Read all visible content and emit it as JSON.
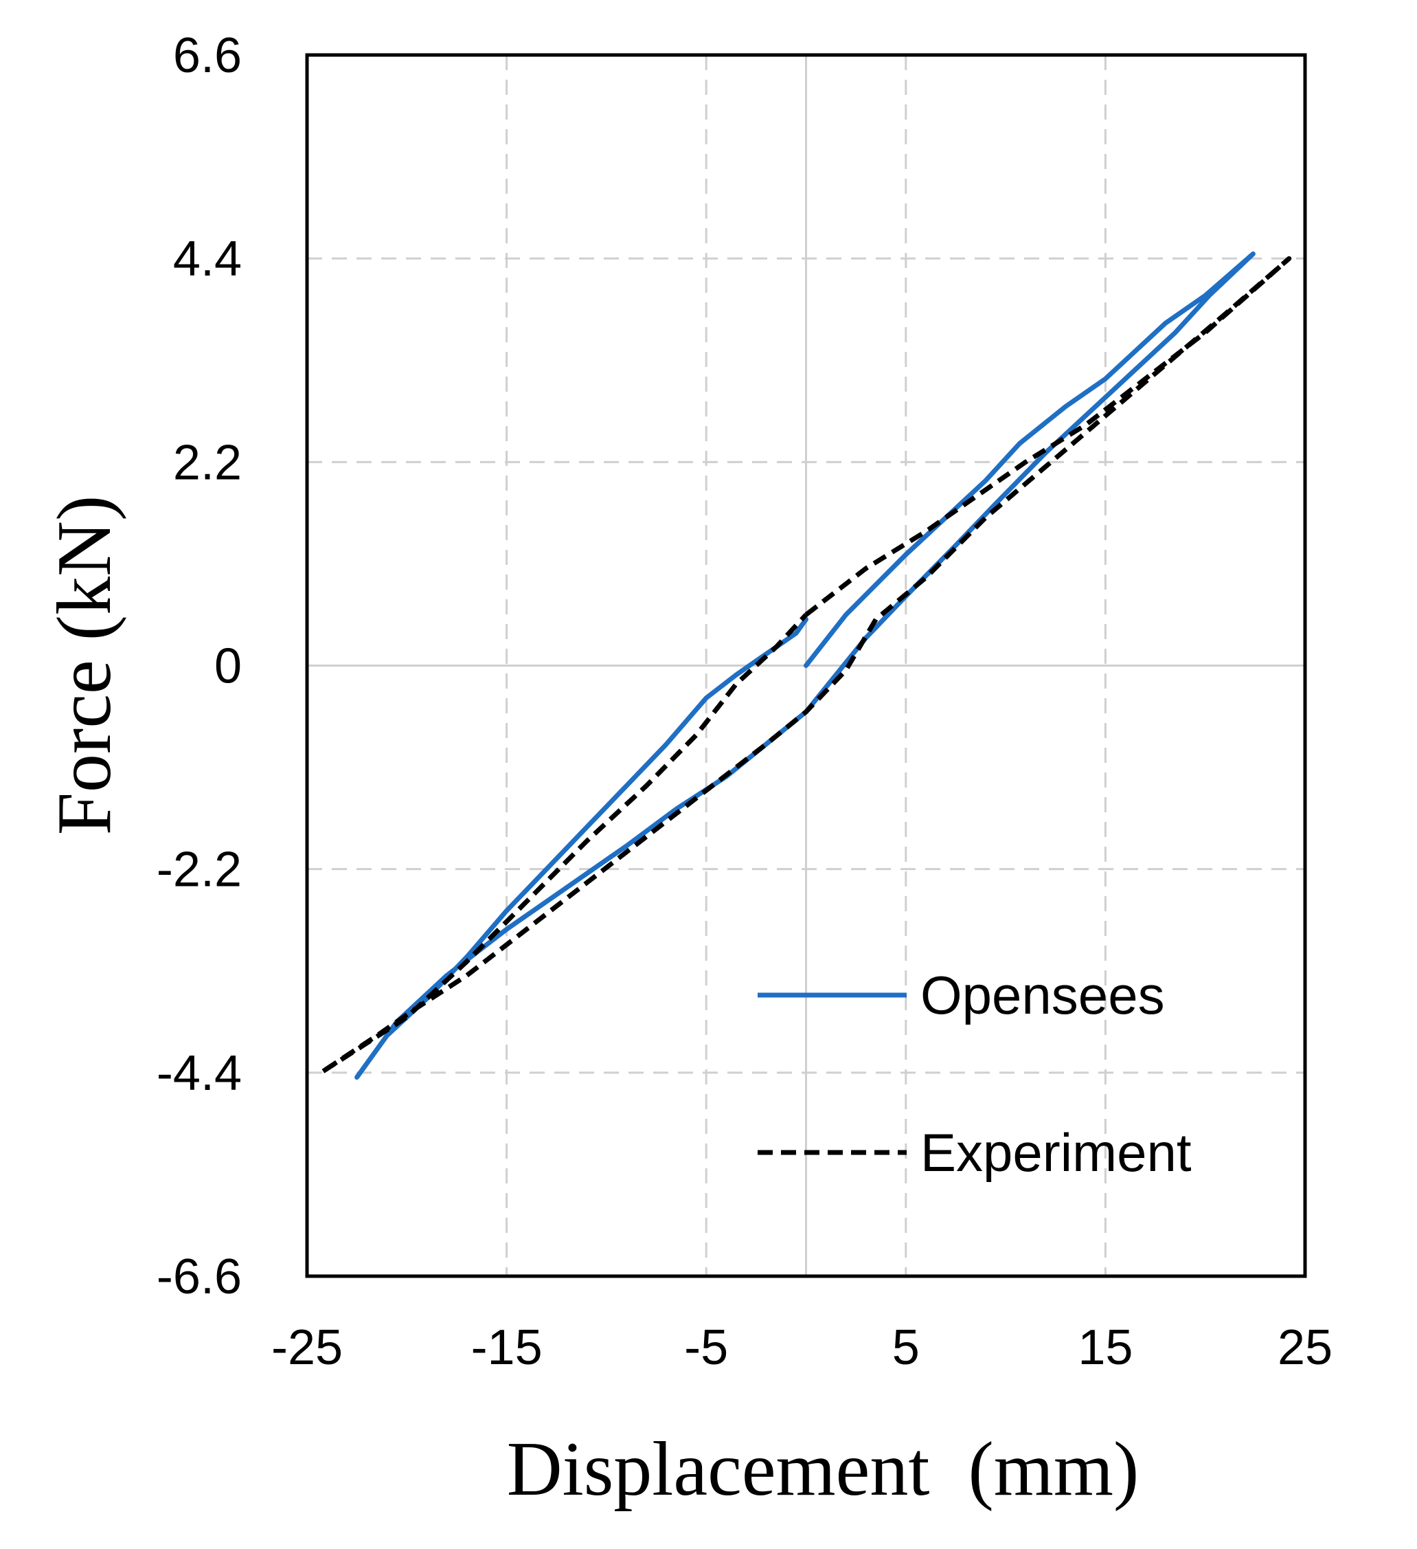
{
  "chart_data": {
    "type": "line",
    "title": "",
    "xlabel": "Displacement  (mm)",
    "ylabel": "Force (kN)",
    "xlim": [
      -25,
      25
    ],
    "ylim": [
      -6.6,
      6.6
    ],
    "xticks": [
      -25,
      -15,
      -5,
      5,
      15,
      25
    ],
    "xtick_labels": [
      "-25",
      "-15",
      "-5",
      "5",
      "15",
      "25"
    ],
    "yticks": [
      6.6,
      4.4,
      2.2,
      0,
      -2.2,
      -4.4,
      -6.6
    ],
    "ytick_labels": [
      "6.6",
      "4.4",
      "2.2",
      "0",
      "-2.2",
      "-4.4",
      "-6.6"
    ],
    "grid": true,
    "legend_position": "bottom-right",
    "series": [
      {
        "name": "Opensees",
        "color": "#1f6fc4",
        "style": "solid",
        "x": [
          0,
          2,
          5,
          6.5,
          9,
          10.7,
          13,
          15,
          18,
          20,
          22.4,
          20.2,
          18.5,
          16.5,
          14.5,
          12,
          9.5,
          7.5,
          5,
          3,
          1.5,
          0,
          -2,
          -4,
          -6.5,
          -9,
          -12,
          -15,
          -18,
          -20.5,
          -22.5,
          -21,
          -19,
          -17,
          -15,
          -13,
          -11,
          -9,
          -7,
          -5,
          -3.5,
          -2.5,
          -1.5,
          -0.5,
          0
        ],
        "y": [
          0,
          0.55,
          1.2,
          1.5,
          2.0,
          2.4,
          2.8,
          3.1,
          3.7,
          4.0,
          4.45,
          4.0,
          3.6,
          3.2,
          2.8,
          2.3,
          1.75,
          1.3,
          0.75,
          0.3,
          -0.1,
          -0.5,
          -0.85,
          -1.2,
          -1.55,
          -1.95,
          -2.4,
          -2.85,
          -3.35,
          -3.85,
          -4.45,
          -4.0,
          -3.6,
          -3.15,
          -2.65,
          -2.2,
          -1.75,
          -1.3,
          -0.85,
          -0.35,
          -0.1,
          0.05,
          0.2,
          0.35,
          0.5
        ]
      },
      {
        "name": "Experiment",
        "color": "#000000",
        "style": "dashed",
        "x": [
          0,
          3,
          6,
          9,
          11,
          14,
          17,
          20,
          24.2,
          21,
          18,
          15,
          12,
          9,
          6,
          3.5,
          2,
          0,
          -2,
          -5,
          -8,
          -11,
          -14,
          -17,
          -19.5,
          -21.5,
          -24.3,
          -22.5,
          -20,
          -17,
          -14,
          -11,
          -8,
          -5.5,
          -3.5,
          -1.5,
          0
        ],
        "y": [
          0.55,
          1.05,
          1.45,
          1.9,
          2.2,
          2.6,
          3.1,
          3.6,
          4.4,
          3.8,
          3.25,
          2.7,
          2.15,
          1.6,
          0.95,
          0.5,
          -0.05,
          -0.5,
          -0.85,
          -1.35,
          -1.85,
          -2.35,
          -2.85,
          -3.35,
          -3.7,
          -4.0,
          -4.4,
          -4.15,
          -3.8,
          -3.2,
          -2.55,
          -1.9,
          -1.3,
          -0.75,
          -0.2,
          0.2,
          0.55
        ]
      }
    ]
  }
}
